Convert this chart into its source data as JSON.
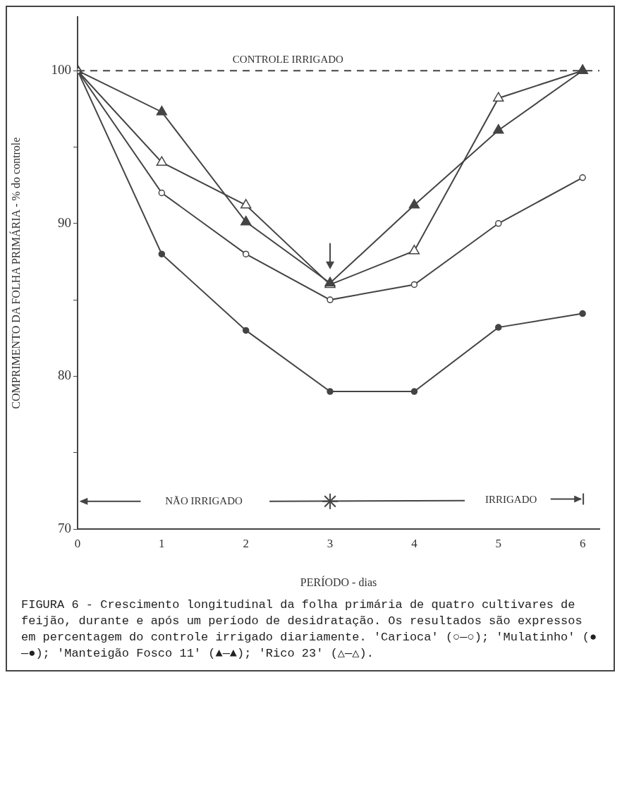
{
  "chart_data": {
    "type": "line",
    "xlabel": "PERÍODO - dias",
    "ylabel": "COMPRIMENTO DA FOLHA PRIMÁRIA - % do controle",
    "x": [
      0,
      1,
      2,
      3,
      4,
      5,
      6
    ],
    "series": [
      {
        "color": "#444444",
        "marker": "circle",
        "values": [
          100,
          92,
          88,
          85,
          86,
          90,
          93
        ]
      },
      {
        "color": "#444444",
        "marker": "circle",
        "values": [
          100,
          88,
          83,
          79,
          79,
          83.2,
          84.1
        ]
      },
      {
        "color": "#444444",
        "marker": "triangle",
        "values": [
          100,
          97.3,
          90.1,
          86.1,
          91.2,
          96.1,
          100
        ]
      },
      {
        "color": "#444444",
        "marker": "triangle",
        "values": [
          100,
          94,
          91.2,
          86,
          88.2,
          98.2,
          100
        ]
      }
    ],
    "xlim": [
      0,
      6.2
    ],
    "xticks": [
      0,
      1,
      2,
      3,
      4,
      5,
      6
    ],
    "ylim": [
      70,
      103.5
    ],
    "yticks": [
      70,
      {
        "value": 75,
        "label": null
      },
      80,
      {
        "value": 85,
        "label": null
      },
      90,
      {
        "value": 95,
        "label": null
      },
      100
    ],
    "grid": false,
    "legend": false,
    "ref_lines": [
      {
        "axis": "y",
        "value": 100,
        "label": "CONTROLE IRRIGADO",
        "color": "#444444",
        "line_style": "dashed"
      }
    ],
    "annotations": [
      "NÃO IRRIGADO",
      "IRRIGADO",
      "FIGURA 6 - Crescimento longitudinal da folha primária de quatro cultivares de feijão, durante e após um período de desidratação. Os resultados são expressos em percentagem do controle irrigado diariamente. 'Carioca' (○—○); 'Mulatinho' (●—●); 'Manteigão Fosco 11' (▲—▲); 'Rico 23' (△—△)."
    ]
  }
}
